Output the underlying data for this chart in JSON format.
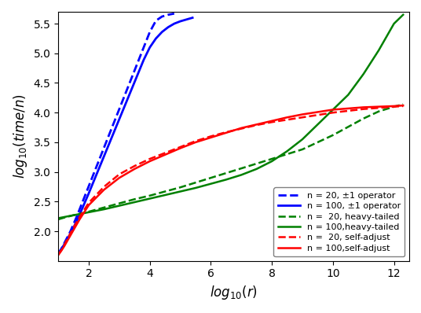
{
  "title": "",
  "xlabel": "$log_{10}(r)$",
  "ylabel": "$log_{10}(time/n)$",
  "xlim": [
    1,
    12.5
  ],
  "ylim": [
    1.5,
    5.7
  ],
  "xticks": [
    2,
    4,
    6,
    8,
    10,
    12
  ],
  "yticks": [
    2.0,
    2.5,
    3.0,
    3.5,
    4.0,
    4.5,
    5.0,
    5.5
  ],
  "legend_entries": [
    {
      "label": "n = 20, ±1 operator",
      "color": "blue",
      "ls": "dashed",
      "lw": 2.0
    },
    {
      "label": "n = 100, ±1 operator",
      "color": "blue",
      "ls": "solid",
      "lw": 2.0
    },
    {
      "label": "n =  20, heavy-tailed",
      "color": "green",
      "ls": "dashed",
      "lw": 1.8
    },
    {
      "label": "n = 100,heavy-tailed",
      "color": "green",
      "ls": "solid",
      "lw": 1.8
    },
    {
      "label": "n =  20, self-adjust",
      "color": "red",
      "ls": "dashed",
      "lw": 1.8
    },
    {
      "label": "n = 100,self-adjust",
      "color": "red",
      "ls": "solid",
      "lw": 1.8
    }
  ],
  "background_color": "#ffffff",
  "blue_n20_x": [
    1.0,
    1.1,
    1.2,
    1.3,
    1.4,
    1.5,
    1.6,
    1.7,
    1.8,
    1.9,
    2.0,
    2.2,
    2.4,
    2.6,
    2.8,
    3.0,
    3.2,
    3.4,
    3.6,
    3.8,
    4.0,
    4.2,
    4.4,
    4.6,
    4.8
  ],
  "blue_n20_y": [
    1.62,
    1.7,
    1.8,
    1.9,
    2.0,
    2.12,
    2.24,
    2.37,
    2.5,
    2.63,
    2.76,
    3.02,
    3.28,
    3.54,
    3.8,
    4.06,
    4.32,
    4.58,
    4.84,
    5.1,
    5.36,
    5.55,
    5.62,
    5.65,
    5.67
  ],
  "blue_n100_x": [
    1.0,
    1.1,
    1.2,
    1.3,
    1.4,
    1.5,
    1.6,
    1.7,
    1.8,
    1.9,
    2.0,
    2.2,
    2.4,
    2.6,
    2.8,
    3.0,
    3.2,
    3.4,
    3.6,
    3.8,
    4.0,
    4.2,
    4.4,
    4.6,
    4.8,
    5.0,
    5.2,
    5.4
  ],
  "blue_n100_y": [
    1.62,
    1.7,
    1.78,
    1.87,
    1.96,
    2.06,
    2.17,
    2.28,
    2.4,
    2.52,
    2.64,
    2.89,
    3.14,
    3.39,
    3.64,
    3.89,
    4.14,
    4.39,
    4.64,
    4.89,
    5.1,
    5.25,
    5.36,
    5.44,
    5.5,
    5.54,
    5.57,
    5.6
  ],
  "green_n20_x": [
    1.0,
    1.2,
    1.5,
    2.0,
    2.5,
    3.0,
    3.5,
    4.0,
    4.5,
    5.0,
    5.5,
    6.0,
    6.5,
    7.0,
    7.5,
    8.0,
    8.5,
    9.0,
    9.5,
    10.0,
    10.5,
    11.0,
    11.5,
    12.0,
    12.3
  ],
  "green_n20_y": [
    2.2,
    2.23,
    2.27,
    2.33,
    2.4,
    2.47,
    2.54,
    2.6,
    2.67,
    2.74,
    2.82,
    2.9,
    2.98,
    3.06,
    3.14,
    3.22,
    3.3,
    3.38,
    3.5,
    3.62,
    3.76,
    3.9,
    4.02,
    4.1,
    4.14
  ],
  "green_n100_x": [
    1.0,
    1.2,
    1.5,
    2.0,
    2.5,
    3.0,
    3.5,
    4.0,
    4.5,
    5.0,
    5.5,
    6.0,
    6.5,
    7.0,
    7.5,
    8.0,
    8.5,
    9.0,
    9.5,
    10.0,
    10.5,
    11.0,
    11.5,
    12.0,
    12.3
  ],
  "green_n100_y": [
    2.22,
    2.24,
    2.27,
    2.32,
    2.37,
    2.43,
    2.49,
    2.55,
    2.61,
    2.67,
    2.73,
    2.8,
    2.87,
    2.95,
    3.05,
    3.18,
    3.35,
    3.55,
    3.8,
    4.05,
    4.3,
    4.65,
    5.05,
    5.5,
    5.65
  ],
  "red_n20_x": [
    1.0,
    1.1,
    1.2,
    1.3,
    1.5,
    1.7,
    2.0,
    2.5,
    3.0,
    3.5,
    4.0,
    4.5,
    5.0,
    5.5,
    6.0,
    6.5,
    7.0,
    7.5,
    8.0,
    8.5,
    9.0,
    9.5,
    10.0,
    10.5,
    11.0,
    11.5,
    12.0,
    12.3
  ],
  "red_n20_y": [
    1.6,
    1.68,
    1.77,
    1.87,
    2.06,
    2.24,
    2.48,
    2.75,
    2.96,
    3.1,
    3.22,
    3.32,
    3.42,
    3.52,
    3.6,
    3.67,
    3.73,
    3.79,
    3.84,
    3.88,
    3.92,
    3.96,
    4.0,
    4.03,
    4.06,
    4.08,
    4.1,
    4.11
  ],
  "red_n100_x": [
    1.0,
    1.1,
    1.2,
    1.3,
    1.5,
    1.7,
    2.0,
    2.5,
    3.0,
    3.5,
    4.0,
    4.5,
    5.0,
    5.5,
    6.0,
    6.5,
    7.0,
    7.5,
    8.0,
    8.5,
    9.0,
    9.5,
    10.0,
    10.5,
    11.0,
    11.5,
    12.0,
    12.3
  ],
  "red_n100_y": [
    1.6,
    1.67,
    1.75,
    1.84,
    2.02,
    2.2,
    2.44,
    2.7,
    2.9,
    3.05,
    3.18,
    3.29,
    3.4,
    3.5,
    3.58,
    3.66,
    3.74,
    3.8,
    3.86,
    3.92,
    3.97,
    4.01,
    4.05,
    4.07,
    4.09,
    4.1,
    4.11,
    4.12
  ]
}
